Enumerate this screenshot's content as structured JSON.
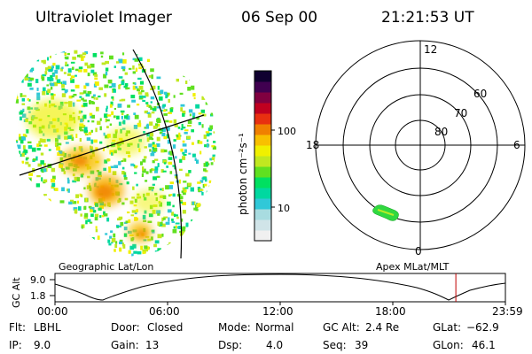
{
  "header": {
    "instrument": "Ultraviolet Imager",
    "date": "06 Sep 00",
    "time": "21:21:53 UT"
  },
  "image_panel": {
    "label": "Geographic Lat/Lon"
  },
  "colorbar": {
    "unit_label": "photon cm⁻²s⁻¹",
    "ticks": [
      "100",
      "10"
    ],
    "colors": [
      "#f0f0f0",
      "#d0e4e8",
      "#a8dce0",
      "#30c8d8",
      "#00d8a0",
      "#00e060",
      "#60e020",
      "#c0e820",
      "#f0f000",
      "#f8c000",
      "#f08000",
      "#e83010",
      "#c00020",
      "#800040",
      "#400050",
      "#100030"
    ]
  },
  "polar_plot": {
    "label": "Apex MLat/MLT",
    "mlt_labels": [
      "12",
      "18",
      "6",
      "0"
    ],
    "mlat_labels": [
      "60",
      "70",
      "80"
    ]
  },
  "altitude_plot": {
    "ylabel": "GC Alt",
    "yticks": [
      "9.0",
      "1.8"
    ],
    "xticks": [
      "00:00",
      "06:00",
      "12:00",
      "18:00",
      "23:59"
    ],
    "current_time_fraction": 0.89,
    "marker_color": "#c00000"
  },
  "params": {
    "filter": {
      "label": "Flt:",
      "value": "LBHL"
    },
    "door": {
      "label": "Door:",
      "value": "Closed"
    },
    "mode": {
      "label": "Mode:",
      "value": "Normal"
    },
    "gc_alt": {
      "label": "GC Alt:",
      "value": "2.4 Re"
    },
    "glat": {
      "label": "GLat:",
      "value": "−62.9"
    },
    "ip": {
      "label": "IP:",
      "value": "9.0"
    },
    "gain": {
      "label": "Gain:",
      "value": "13"
    },
    "dsp": {
      "label": "Dsp:",
      "value": "4.0"
    },
    "seq": {
      "label": "Seq:",
      "value": "39"
    },
    "glon": {
      "label": "GLon:",
      "value": "46.1"
    }
  }
}
